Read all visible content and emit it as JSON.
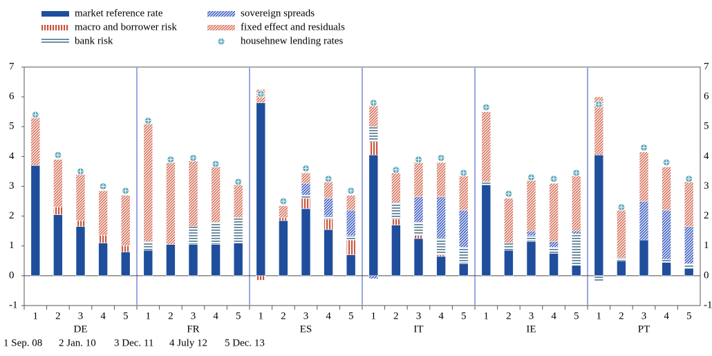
{
  "chart_data": {
    "type": "stacked-bar",
    "categories": [
      "1",
      "2",
      "3",
      "4",
      "5",
      "1",
      "2",
      "3",
      "4",
      "5",
      "1",
      "2",
      "3",
      "4",
      "5",
      "1",
      "2",
      "3",
      "4",
      "5",
      "1",
      "2",
      "3",
      "4",
      "5",
      "1",
      "2",
      "3",
      "4",
      "5"
    ],
    "groups": [
      "DE",
      "FR",
      "ES",
      "IT",
      "IE",
      "PT"
    ],
    "note": [
      "1 Sep. 08",
      "2 Jan. 10",
      "3 Dec. 11",
      "4 July 12",
      "5 Dec. 13"
    ],
    "series": [
      {
        "name": "market reference rate",
        "color": "#1f4e9c",
        "hatch": "solid",
        "values": [
          3.7,
          2.05,
          1.65,
          1.1,
          0.8,
          0.85,
          1.05,
          1.05,
          1.05,
          1.1,
          5.8,
          1.85,
          2.25,
          1.55,
          0.7,
          4.05,
          1.7,
          1.25,
          0.65,
          0.4,
          3.05,
          0.85,
          1.15,
          0.75,
          0.35,
          4.05,
          0.5,
          1.2,
          0.45,
          0.25
        ]
      },
      {
        "name": "macro and borrower risk",
        "color": "#c8553d",
        "hatch": "vertical",
        "values": [
          0,
          0.25,
          0.2,
          0.25,
          0.2,
          0,
          0,
          0,
          0,
          0,
          -0.15,
          0.1,
          0.35,
          0.35,
          0.5,
          0.45,
          0.2,
          0.1,
          0.05,
          0,
          0,
          0,
          0,
          0,
          0,
          0,
          0,
          0,
          0,
          0
        ]
      },
      {
        "name": "bank risk",
        "color": "#6f8fa3",
        "hatch": "horizontal",
        "values": [
          0,
          0,
          0,
          0,
          0,
          0.3,
          0,
          0.6,
          0.75,
          0.85,
          0,
          0,
          0.1,
          0.1,
          0.15,
          0.5,
          0.55,
          0.45,
          0.55,
          0.55,
          0.1,
          0.25,
          0.2,
          0.2,
          1.05,
          -0.2,
          0.1,
          0,
          0.1,
          0.15
        ]
      },
      {
        "name": "sovereign spreads",
        "color": "#3a5cc0",
        "hatch": "diagonal",
        "values": [
          0,
          0,
          0,
          0,
          0,
          0,
          0,
          0,
          0,
          0,
          0,
          0,
          0.4,
          0.6,
          0.85,
          -0.1,
          0,
          0.85,
          1.4,
          1.25,
          0,
          0,
          0.15,
          0.2,
          0.1,
          0,
          0,
          1.3,
          1.65,
          1.25
        ]
      },
      {
        "name": "fixed effect and residuals",
        "color": "#d9725c",
        "hatch": "diagonal",
        "values": [
          1.6,
          1.6,
          1.55,
          1.5,
          1.7,
          3.95,
          2.75,
          2.2,
          1.85,
          1.1,
          0.45,
          0.4,
          0.35,
          0.55,
          0.5,
          0.7,
          1.0,
          1.15,
          1.15,
          1.15,
          2.35,
          1.5,
          1.7,
          1.95,
          1.85,
          1.95,
          1.6,
          1.65,
          1.45,
          1.5
        ]
      },
      {
        "name": "househnew lending rates",
        "color": "#5fa8bd",
        "type": "marker",
        "values": [
          5.4,
          4.05,
          3.5,
          3.0,
          2.85,
          5.2,
          3.9,
          3.95,
          3.75,
          3.15,
          6.1,
          2.5,
          3.6,
          3.25,
          2.85,
          5.8,
          3.55,
          3.9,
          3.95,
          3.45,
          5.65,
          2.75,
          3.3,
          3.25,
          3.45,
          5.75,
          2.3,
          4.3,
          3.8,
          3.25
        ]
      }
    ],
    "ylim": [
      -1,
      7
    ],
    "yticks": [
      -1,
      0,
      1,
      2,
      3,
      4,
      5,
      6,
      7
    ]
  }
}
